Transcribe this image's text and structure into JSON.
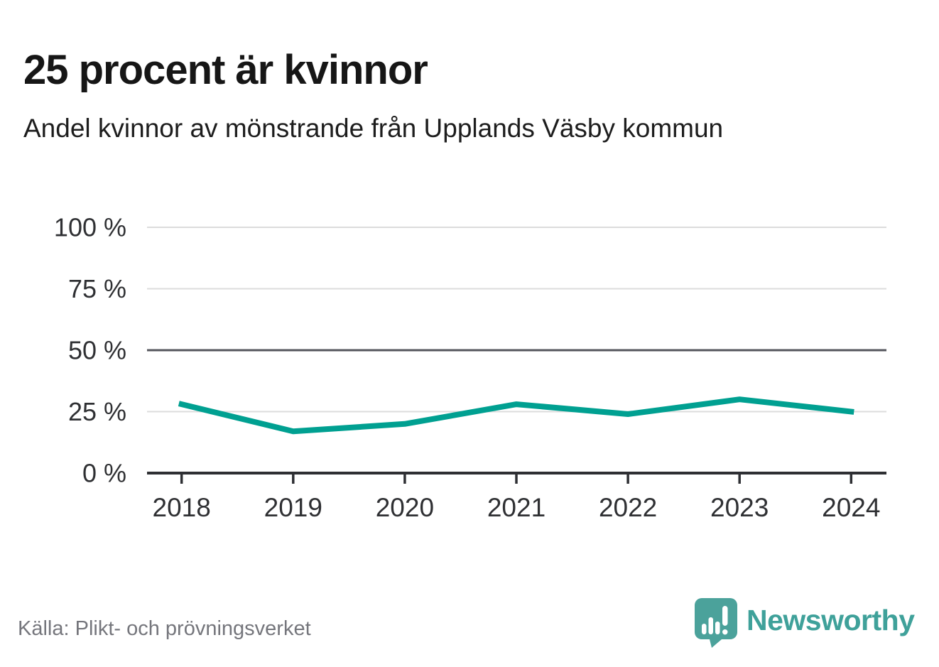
{
  "page": {
    "title": "25 procent är kvinnor",
    "subtitle": "Andel kvinnor av mönstrande från Upplands Väsby kommun",
    "source": "Källa: Plikt- och prövningsverket",
    "brand": "Newsworthy"
  },
  "colors": {
    "line": "#00a091",
    "grid_light": "#dcdcdc",
    "grid_emphasis": "#55565c",
    "axis": "#2e2f33",
    "tick_label": "#2f3033",
    "source_text": "#75767c",
    "brand_teal": "#3fa19a",
    "brand_bubble": "#4ba29b"
  },
  "chart_data": {
    "type": "line",
    "title": "25 procent är kvinnor",
    "subtitle": "Andel kvinnor av mönstrande från Upplands Väsby kommun",
    "categories": [
      "2018",
      "2019",
      "2020",
      "2021",
      "2022",
      "2023",
      "2024"
    ],
    "series": [
      {
        "name": "Andel kvinnor av mönstrande",
        "values": [
          28,
          17,
          20,
          28,
          24,
          30,
          25
        ]
      }
    ],
    "unit": "%",
    "ylim": [
      0,
      100
    ],
    "yticks": [
      0,
      25,
      50,
      75,
      100
    ],
    "ytick_suffix": " %",
    "emphasized_gridline": 50,
    "grid": true,
    "legend": false,
    "source": "Källa: Plikt- och prövningsverket"
  }
}
